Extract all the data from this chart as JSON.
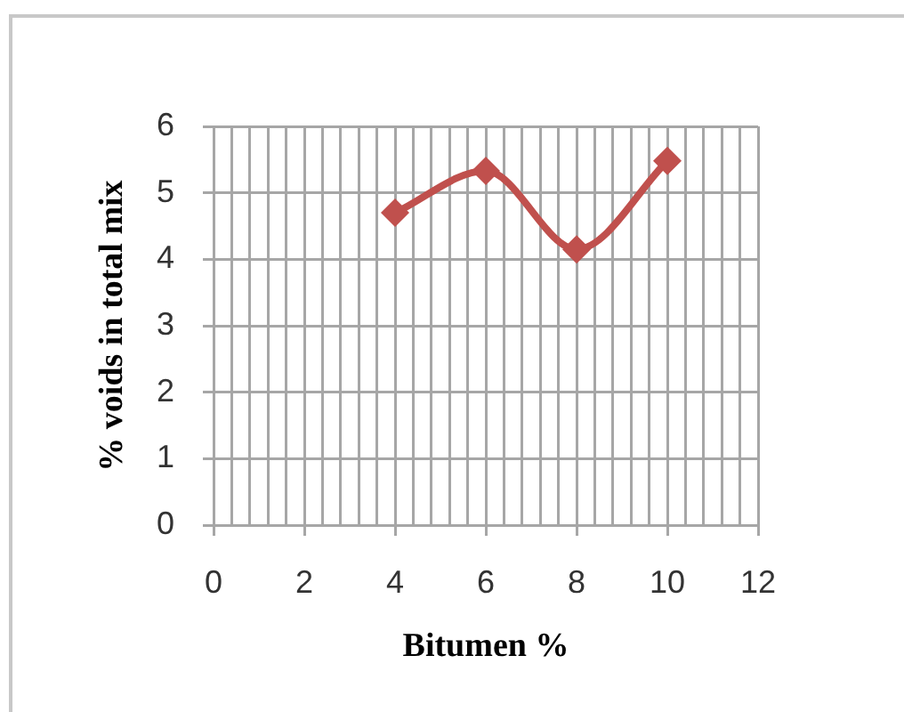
{
  "chart_data": {
    "type": "line",
    "xlabel": "Bitumen %",
    "ylabel": "% voids in total mix",
    "x": [
      4,
      6,
      8,
      10
    ],
    "series": [
      {
        "color": "#c0504d",
        "values": [
          4.7,
          5.33,
          4.15,
          5.48
        ]
      }
    ],
    "xlim": [
      0,
      12
    ],
    "xticks": [
      0,
      {
        "value": 0.4,
        "label": null
      },
      {
        "value": 0.8,
        "label": null
      },
      {
        "value": 1.2,
        "label": null
      },
      {
        "value": 1.6,
        "label": null
      },
      2,
      {
        "value": 2.4,
        "label": null
      },
      {
        "value": 2.8,
        "label": null
      },
      {
        "value": 3.2,
        "label": null
      },
      {
        "value": 3.6,
        "label": null
      },
      4,
      {
        "value": 4.4,
        "label": null
      },
      {
        "value": 4.8,
        "label": null
      },
      {
        "value": 5.2,
        "label": null
      },
      {
        "value": 5.6,
        "label": null
      },
      6,
      {
        "value": 6.4,
        "label": null
      },
      {
        "value": 6.8,
        "label": null
      },
      {
        "value": 7.2,
        "label": null
      },
      {
        "value": 7.6,
        "label": null
      },
      8,
      {
        "value": 8.4,
        "label": null
      },
      {
        "value": 8.8,
        "label": null
      },
      {
        "value": 9.2,
        "label": null
      },
      {
        "value": 9.6,
        "label": null
      },
      10,
      {
        "value": 10.4,
        "label": null
      },
      {
        "value": 10.8,
        "label": null
      },
      {
        "value": 11.2,
        "label": null
      },
      {
        "value": 11.6,
        "label": null
      },
      12
    ],
    "ylim": [
      0,
      6
    ],
    "yticks": [
      0,
      1,
      2,
      3,
      4,
      5,
      6
    ],
    "grid": true,
    "marker": "diamond",
    "line_style": "solid",
    "legend": false
  }
}
